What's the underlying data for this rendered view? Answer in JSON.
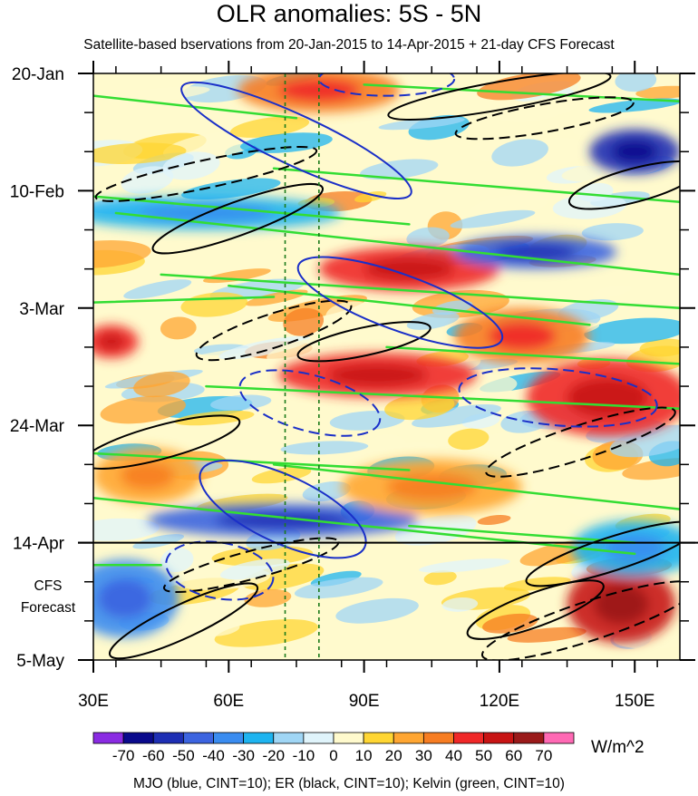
{
  "chart_data": {
    "type": "heatmap",
    "title": "OLR anomalies: 5S - 5N",
    "subtitle": "Satellite-based bservations from 20-Jan-2015 to 14-Apr-2015 + 21-day CFS Forecast",
    "x_ticks": [
      {
        "label": "30E",
        "value": 30
      },
      {
        "label": "60E",
        "value": 60
      },
      {
        "label": "90E",
        "value": 90
      },
      {
        "label": "120E",
        "value": 120
      },
      {
        "label": "150E",
        "value": 150
      }
    ],
    "x_range": [
      30,
      160
    ],
    "y_ticks": [
      {
        "label": "20-Jan",
        "day": 0
      },
      {
        "label": "10-Feb",
        "day": 21
      },
      {
        "label": "3-Mar",
        "day": 42
      },
      {
        "label": "24-Mar",
        "day": 63
      },
      {
        "label": "14-Apr",
        "day": 84
      },
      {
        "label": "5-May",
        "day": 105
      }
    ],
    "y_range_days": [
      0,
      105
    ],
    "forecast_start_day": 84,
    "forecast_label": [
      "CFS",
      "Forecast"
    ],
    "reference_longitudes": [
      72.5,
      80
    ],
    "units": "W/m^2",
    "colorbar_levels": [
      -70,
      -60,
      -50,
      -40,
      -30,
      -20,
      -10,
      0,
      10,
      20,
      30,
      40,
      50,
      60,
      70
    ],
    "colorbar_labels": [
      "-70",
      "-60",
      "-50",
      "-40",
      "-30",
      "-20",
      "-10",
      "0",
      "10",
      "20",
      "30",
      "40",
      "50",
      "60",
      "70"
    ],
    "colorbar_colors": [
      "#8a2be2",
      "#0a0a8c",
      "#1e2fb4",
      "#3c64e0",
      "#3a8cf0",
      "#1eb4f0",
      "#a0d6f5",
      "#e0f4fb",
      "#fffacd",
      "#ffd633",
      "#ffa632",
      "#f77d22",
      "#f02828",
      "#c81414",
      "#9a1a1a",
      "#ff69b4"
    ],
    "anomaly_blobs": [
      {
        "lon": 100,
        "day": 35,
        "rx": 20,
        "ry": 4,
        "value": 48
      },
      {
        "lon": 93,
        "day": 54,
        "rx": 22,
        "ry": 4,
        "value": 42
      },
      {
        "lon": 144,
        "day": 58,
        "rx": 18,
        "ry": 7,
        "value": 45
      },
      {
        "lon": 147,
        "day": 95,
        "rx": 12,
        "ry": 7,
        "value": 55
      },
      {
        "lon": 80,
        "day": 3,
        "rx": 18,
        "ry": 4,
        "value": 38
      },
      {
        "lon": 150,
        "day": 14,
        "rx": 10,
        "ry": 4,
        "value": -58
      },
      {
        "lon": 128,
        "day": 32,
        "rx": 18,
        "ry": 3,
        "value": -45
      },
      {
        "lon": 72,
        "day": 80,
        "rx": 30,
        "ry": 3,
        "value": -48
      },
      {
        "lon": 37,
        "day": 94,
        "rx": 12,
        "ry": 7,
        "value": -35
      },
      {
        "lon": 55,
        "day": 25,
        "rx": 30,
        "ry": 3,
        "value": -30
      },
      {
        "lon": 150,
        "day": 85,
        "rx": 14,
        "ry": 5,
        "value": -28
      },
      {
        "lon": 105,
        "day": 74,
        "rx": 20,
        "ry": 5,
        "value": 25
      },
      {
        "lon": 42,
        "day": 72,
        "rx": 12,
        "ry": 5,
        "value": 28
      },
      {
        "lon": 125,
        "day": 47,
        "rx": 15,
        "ry": 5,
        "value": 30
      },
      {
        "lon": 34,
        "day": 48,
        "rx": 6,
        "ry": 3,
        "value": 45
      }
    ],
    "mjo_contours_blue": [
      {
        "lon": 75,
        "day": 12,
        "rx": 28,
        "ry": 4.5,
        "rot": 25,
        "dashed": false
      },
      {
        "lon": 98,
        "day": 41,
        "rx": 24,
        "ry": 5,
        "rot": 20,
        "dashed": false
      },
      {
        "lon": 72,
        "day": 78,
        "rx": 20,
        "ry": 6,
        "rot": 25,
        "dashed": false
      },
      {
        "lon": 133,
        "day": 58,
        "rx": 22,
        "ry": 5,
        "rot": 5,
        "dashed": true
      },
      {
        "lon": 78,
        "day": 59,
        "rx": 16,
        "ry": 5,
        "rot": 15,
        "dashed": true
      },
      {
        "lon": 58,
        "day": 89,
        "rx": 12,
        "ry": 5,
        "rot": 10,
        "dashed": true
      },
      {
        "lon": 95,
        "day": 1,
        "rx": 15,
        "ry": 3,
        "rot": 0,
        "dashed": true
      }
    ],
    "er_contours_black": [
      {
        "lon": 62,
        "day": 26,
        "rx": 20,
        "ry": 3,
        "rot": -20,
        "dashed": false
      },
      {
        "lon": 145,
        "day": 86,
        "rx": 20,
        "ry": 3,
        "rot": -18,
        "dashed": false
      },
      {
        "lon": 50,
        "day": 98,
        "rx": 18,
        "ry": 3,
        "rot": -25,
        "dashed": false
      },
      {
        "lon": 128,
        "day": 96,
        "rx": 16,
        "ry": 3,
        "rot": -20,
        "dashed": false
      },
      {
        "lon": 45,
        "day": 66,
        "rx": 18,
        "ry": 3,
        "rot": -15,
        "dashed": false
      },
      {
        "lon": 120,
        "day": 4,
        "rx": 25,
        "ry": 2.5,
        "rot": -10,
        "dashed": false
      },
      {
        "lon": 150,
        "day": 20,
        "rx": 15,
        "ry": 3,
        "rot": -15,
        "dashed": false
      },
      {
        "lon": 90,
        "day": 48,
        "rx": 15,
        "ry": 2.5,
        "rot": -12,
        "dashed": false
      },
      {
        "lon": 70,
        "day": 46,
        "rx": 18,
        "ry": 3,
        "rot": -18,
        "dashed": true
      },
      {
        "lon": 55,
        "day": 18,
        "rx": 25,
        "ry": 2.5,
        "rot": -12,
        "dashed": true
      },
      {
        "lon": 138,
        "day": 66,
        "rx": 22,
        "ry": 3,
        "rot": -18,
        "dashed": true
      },
      {
        "lon": 140,
        "day": 98,
        "rx": 25,
        "ry": 3.5,
        "rot": -18,
        "dashed": true
      },
      {
        "lon": 65,
        "day": 88,
        "rx": 20,
        "ry": 2.5,
        "rot": -15,
        "dashed": true
      },
      {
        "lon": 130,
        "day": 8,
        "rx": 20,
        "ry": 2.5,
        "rot": -10,
        "dashed": true
      }
    ],
    "kelvin_lines_green": [
      {
        "lon0": 30,
        "day0": 4,
        "lon1": 75,
        "day1": 8
      },
      {
        "lon0": 90,
        "day0": 2,
        "lon1": 160,
        "day1": 5
      },
      {
        "lon0": 30,
        "day0": 22,
        "lon1": 100,
        "day1": 27
      },
      {
        "lon0": 35,
        "day0": 25,
        "lon1": 160,
        "day1": 36
      },
      {
        "lon0": 70,
        "day0": 17,
        "lon1": 160,
        "day1": 23
      },
      {
        "lon0": 45,
        "day0": 36,
        "lon1": 160,
        "day1": 42
      },
      {
        "lon0": 60,
        "day0": 38,
        "lon1": 140,
        "day1": 45
      },
      {
        "lon0": 30,
        "day0": 41,
        "lon1": 70,
        "day1": 40
      },
      {
        "lon0": 95,
        "day0": 49,
        "lon1": 160,
        "day1": 52
      },
      {
        "lon0": 55,
        "day0": 56,
        "lon1": 160,
        "day1": 60
      },
      {
        "lon0": 30,
        "day0": 68,
        "lon1": 100,
        "day1": 71
      },
      {
        "lon0": 70,
        "day0": 70,
        "lon1": 160,
        "day1": 78
      },
      {
        "lon0": 30,
        "day0": 76,
        "lon1": 150,
        "day1": 86
      },
      {
        "lon0": 100,
        "day0": 81,
        "lon1": 150,
        "day1": 84
      },
      {
        "lon0": 30,
        "day0": 88,
        "lon1": 45,
        "day1": 88
      }
    ]
  },
  "footer": "MJO (blue, CINT=10); ER (black, CINT=10); Kelvin (green, CINT=10)"
}
